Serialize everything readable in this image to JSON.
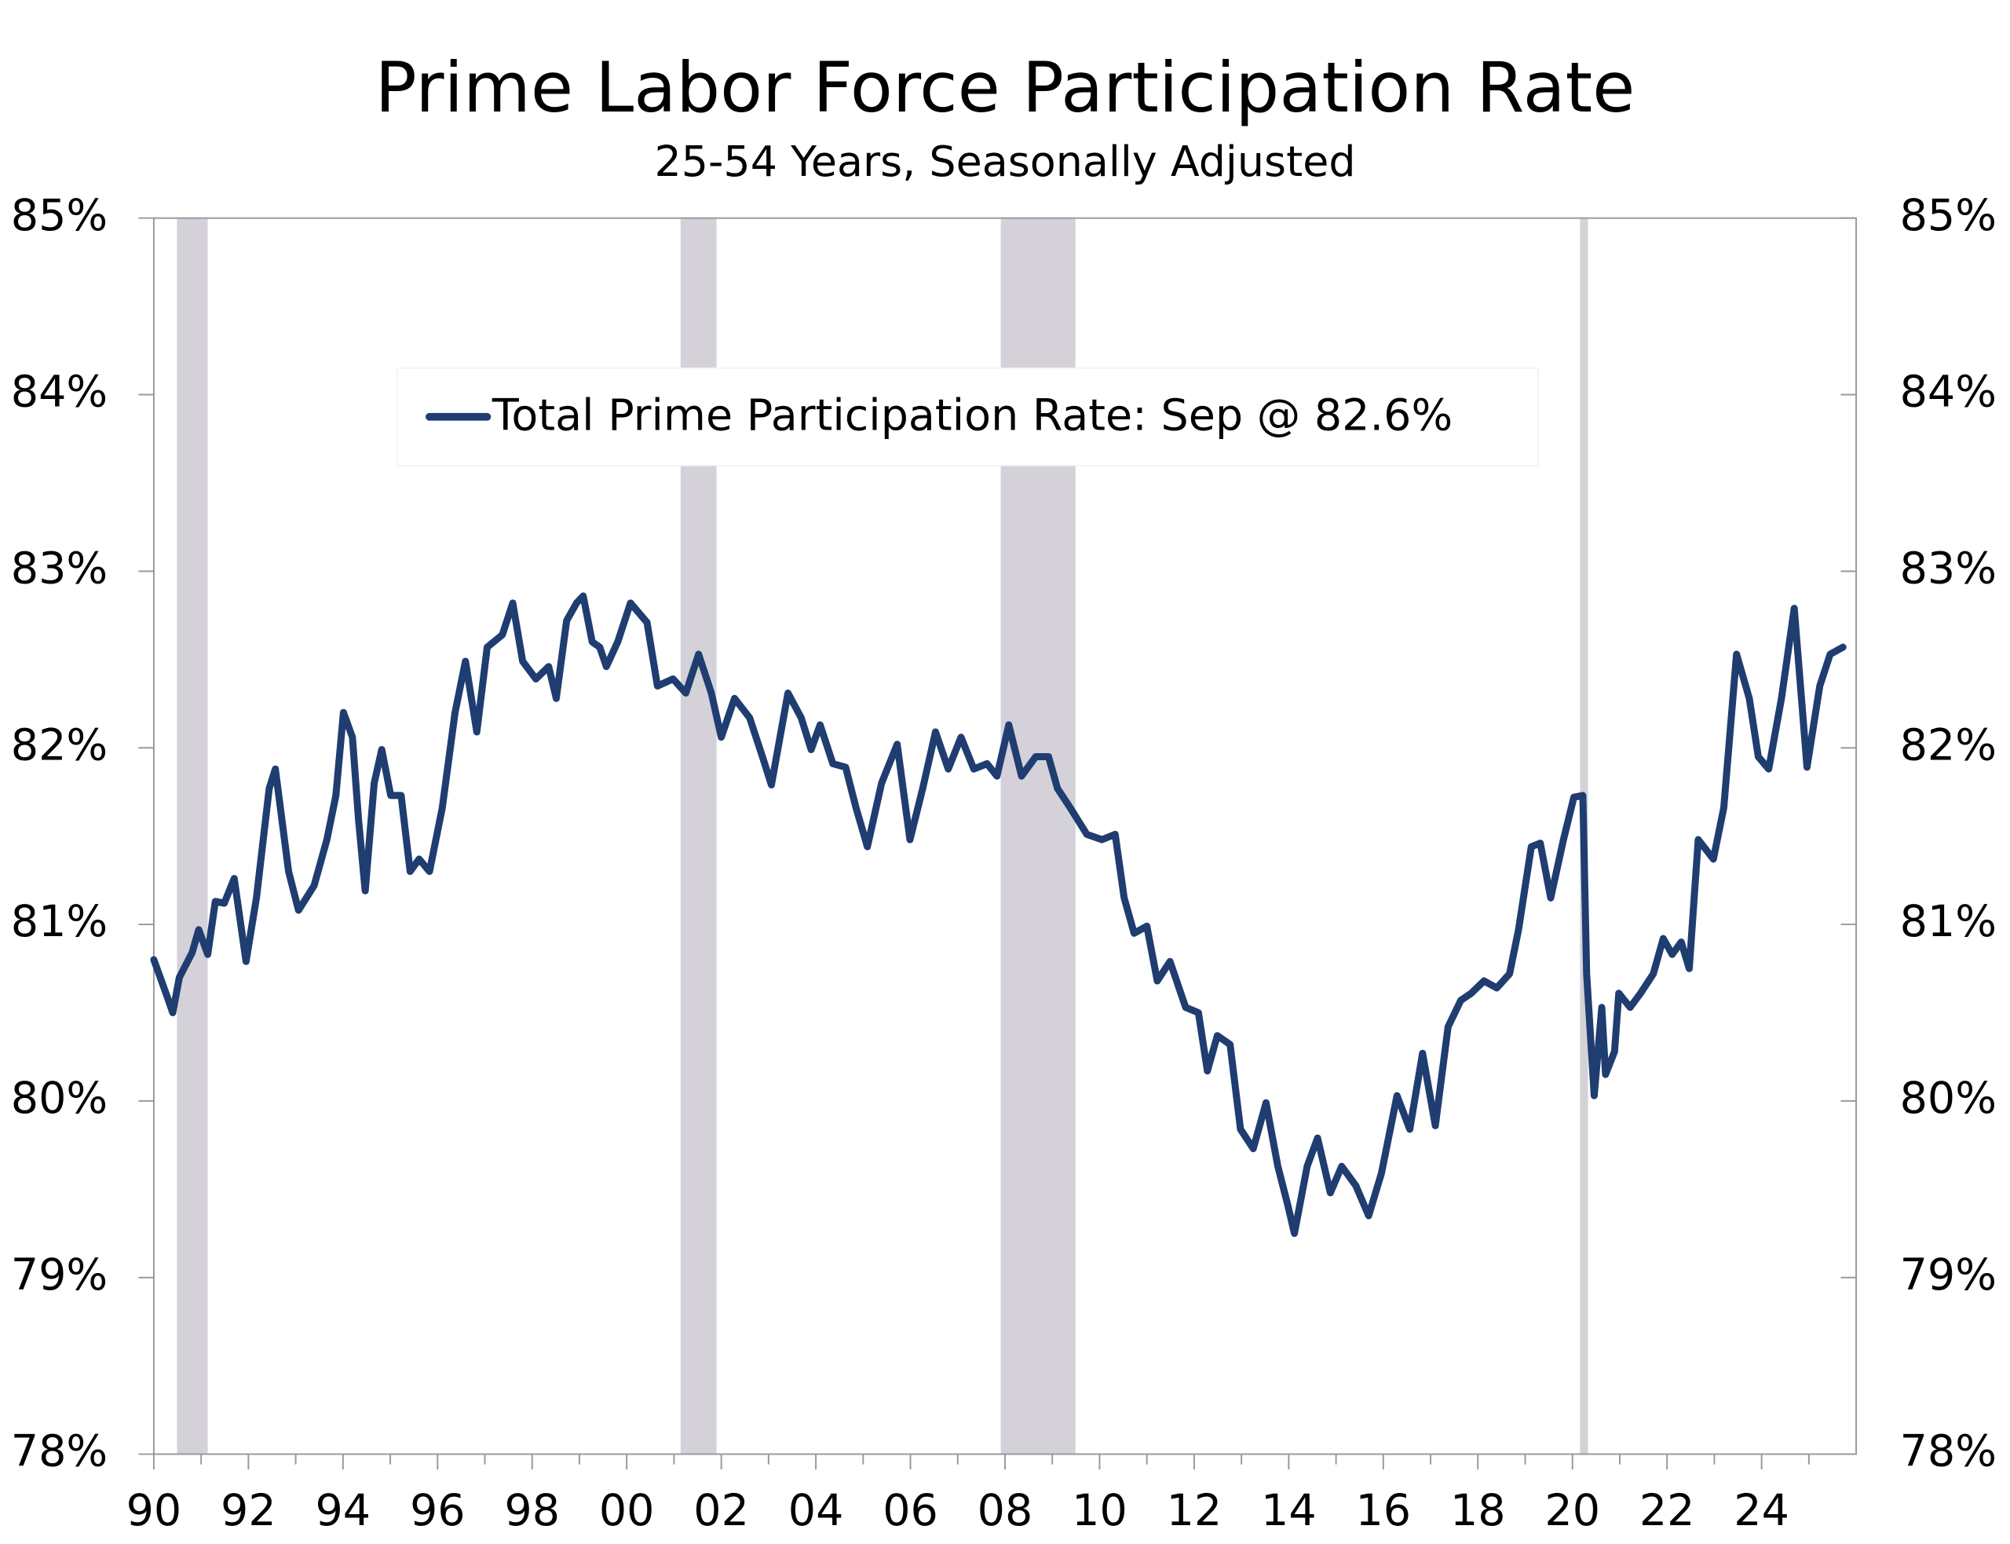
{
  "chart_data": {
    "type": "line",
    "title": "Prime Labor Force Participation Rate",
    "subtitle": "25-54 Years, Seasonally Adjusted",
    "x": [
      1990.0,
      1990.27,
      1990.4,
      1990.54,
      1990.81,
      1990.95,
      1991.14,
      1991.3,
      1991.49,
      1991.7,
      1991.95,
      1992.17,
      1992.44,
      1992.57,
      1992.85,
      1993.06,
      1993.39,
      1993.66,
      1993.85,
      1994.01,
      1994.2,
      1994.33,
      1994.47,
      1994.66,
      1994.82,
      1995.01,
      1995.23,
      1995.42,
      1995.61,
      1995.83,
      1996.1,
      1996.37,
      1996.59,
      1996.83,
      1997.05,
      1997.37,
      1997.59,
      1997.8,
      1998.08,
      1998.35,
      1998.51,
      1998.73,
      1998.94,
      1999.08,
      1999.27,
      1999.43,
      1999.57,
      1999.81,
      2000.08,
      2000.43,
      2000.65,
      2000.98,
      2001.25,
      2001.52,
      2001.79,
      2002.0,
      2002.28,
      2002.6,
      2002.87,
      2003.06,
      2003.41,
      2003.69,
      2003.9,
      2004.09,
      2004.36,
      2004.63,
      2004.85,
      2005.09,
      2005.39,
      2005.72,
      2005.99,
      2006.26,
      2006.53,
      2006.8,
      2007.07,
      2007.34,
      2007.62,
      2007.83,
      2008.08,
      2008.35,
      2008.65,
      2008.92,
      2009.11,
      2009.38,
      2009.73,
      2010.05,
      2010.33,
      2010.52,
      2010.73,
      2011.0,
      2011.22,
      2011.49,
      2011.82,
      2012.09,
      2012.28,
      2012.49,
      2012.76,
      2012.98,
      2013.25,
      2013.52,
      2013.77,
      2013.98,
      2014.12,
      2014.39,
      2014.61,
      2014.88,
      2015.12,
      2015.42,
      2015.69,
      2015.96,
      2016.29,
      2016.56,
      2016.83,
      2017.1,
      2017.37,
      2017.64,
      2017.86,
      2018.13,
      2018.4,
      2018.67,
      2018.86,
      2019.13,
      2019.32,
      2019.54,
      2019.81,
      2020.03,
      2020.22,
      2020.3,
      2020.46,
      2020.62,
      2020.7,
      2020.89,
      2020.98,
      2021.22,
      2021.44,
      2021.71,
      2021.92,
      2022.11,
      2022.3,
      2022.47,
      2022.66,
      2022.98,
      2023.2,
      2023.47,
      2023.74,
      2023.93,
      2024.15,
      2024.42,
      2024.69,
      2024.96,
      2025.23,
      2025.45,
      2025.72
    ],
    "series": [
      {
        "name": "Total Prime Participation Rate: Sep @ 82.6%",
        "color": "#1f3d70",
        "values": [
          80.8,
          80.6,
          80.5,
          80.7,
          80.84,
          80.97,
          80.83,
          81.13,
          81.12,
          81.26,
          80.79,
          81.15,
          81.77,
          81.88,
          81.3,
          81.08,
          81.22,
          81.48,
          81.73,
          82.2,
          82.06,
          81.59,
          81.19,
          81.8,
          81.99,
          81.73,
          81.73,
          81.3,
          81.37,
          81.3,
          81.66,
          82.2,
          82.49,
          82.09,
          82.57,
          82.64,
          82.82,
          82.49,
          82.39,
          82.46,
          82.28,
          82.72,
          82.82,
          82.86,
          82.6,
          82.57,
          82.46,
          82.6,
          82.82,
          82.71,
          82.35,
          82.39,
          82.31,
          82.53,
          82.31,
          82.06,
          82.28,
          82.17,
          81.95,
          81.79,
          82.31,
          82.17,
          81.99,
          82.13,
          81.91,
          81.89,
          81.66,
          81.44,
          81.8,
          82.02,
          81.48,
          81.77,
          82.09,
          81.88,
          82.06,
          81.88,
          81.91,
          81.84,
          82.13,
          81.84,
          81.95,
          81.95,
          81.77,
          81.66,
          81.51,
          81.48,
          81.51,
          81.15,
          80.95,
          80.99,
          80.68,
          80.79,
          80.53,
          80.5,
          80.17,
          80.37,
          80.32,
          79.84,
          79.73,
          79.99,
          79.63,
          79.41,
          79.25,
          79.63,
          79.79,
          79.48,
          79.63,
          79.52,
          79.35,
          79.59,
          80.03,
          79.84,
          80.27,
          79.86,
          80.42,
          80.57,
          80.61,
          80.68,
          80.64,
          80.72,
          80.97,
          81.44,
          81.46,
          81.15,
          81.48,
          81.72,
          81.73,
          80.72,
          80.03,
          80.53,
          80.15,
          80.28,
          80.61,
          80.53,
          80.61,
          80.72,
          80.92,
          80.83,
          80.9,
          80.75,
          81.48,
          81.37,
          81.66,
          82.53,
          82.28,
          81.95,
          81.88,
          82.28,
          82.79,
          81.89,
          82.35,
          82.53,
          82.57
        ]
      }
    ],
    "recessions": [
      [
        1990.49,
        1991.14
      ],
      [
        2001.14,
        2001.9
      ],
      [
        2007.91,
        2009.49
      ],
      [
        2020.16,
        2020.33
      ]
    ],
    "recession_color": "#d5d1d9",
    "xlim": [
      1990,
      2026
    ],
    "xticks": [
      {
        "value": 1990,
        "label": "90"
      },
      {
        "value": 1992,
        "label": "92"
      },
      {
        "value": 1994,
        "label": "94"
      },
      {
        "value": 1996,
        "label": "96"
      },
      {
        "value": 1998,
        "label": "98"
      },
      {
        "value": 2000,
        "label": "00"
      },
      {
        "value": 2002,
        "label": "02"
      },
      {
        "value": 2004,
        "label": "04"
      },
      {
        "value": 2006,
        "label": "06"
      },
      {
        "value": 2008,
        "label": "08"
      },
      {
        "value": 2010,
        "label": "10"
      },
      {
        "value": 2012,
        "label": "12"
      },
      {
        "value": 2014,
        "label": "14"
      },
      {
        "value": 2016,
        "label": "16"
      },
      {
        "value": 2018,
        "label": "18"
      },
      {
        "value": 2020,
        "label": "20"
      },
      {
        "value": 2022,
        "label": "22"
      },
      {
        "value": 2024,
        "label": "24"
      }
    ],
    "xminorticks": [
      1991,
      1993,
      1995,
      1997,
      1999,
      2001,
      2003,
      2005,
      2007,
      2009,
      2011,
      2013,
      2015,
      2017,
      2019,
      2021,
      2023,
      2025
    ],
    "ylim": [
      78,
      85
    ],
    "yticks": [
      {
        "value": 78,
        "label": "78%"
      },
      {
        "value": 79,
        "label": "79%"
      },
      {
        "value": 80,
        "label": "80%"
      },
      {
        "value": 81,
        "label": "81%"
      },
      {
        "value": 82,
        "label": "82%"
      },
      {
        "value": 83,
        "label": "83%"
      },
      {
        "value": 84,
        "label": "84%"
      },
      {
        "value": 85,
        "label": "85%"
      }
    ],
    "grid": false
  }
}
